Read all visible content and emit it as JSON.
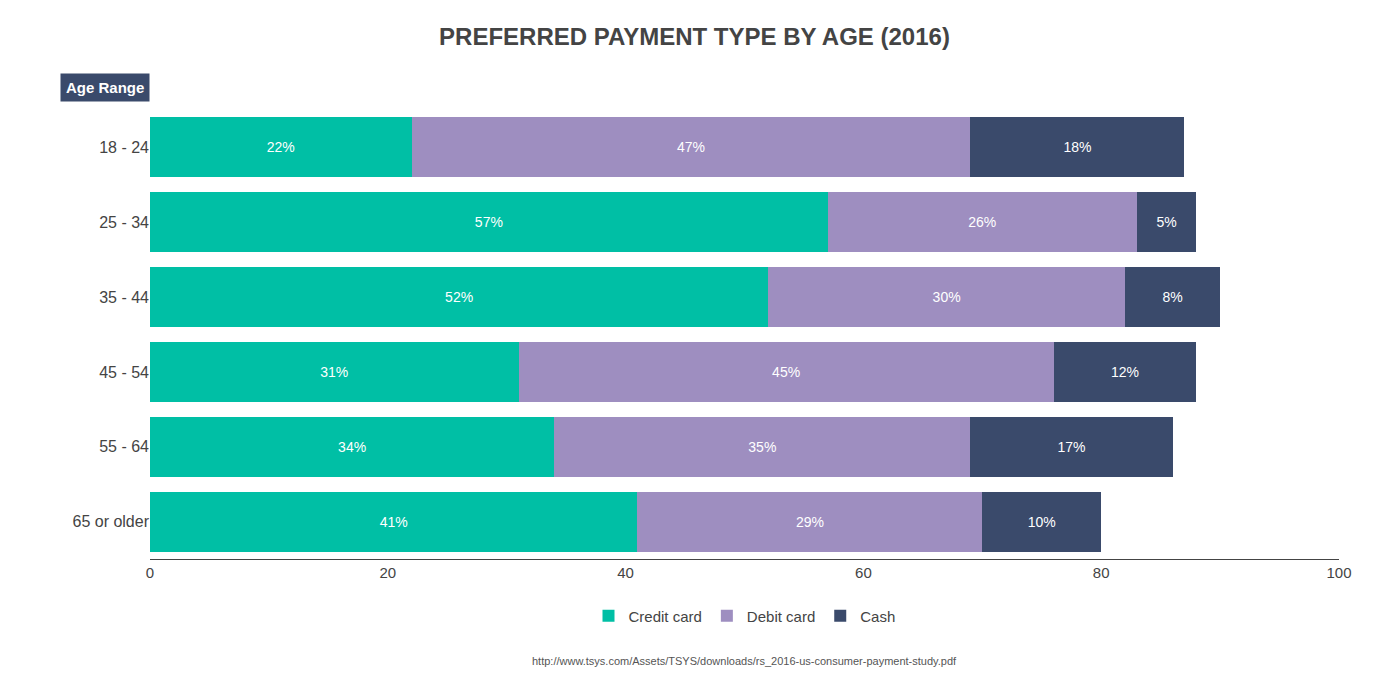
{
  "chart_data": {
    "type": "bar",
    "orientation": "horizontal",
    "stacked": true,
    "title": "PREFERRED PAYMENT TYPE BY AGE (2016)",
    "ylabel": "Age Range",
    "annotations": [
      "http://www.tsys.com/Assets/TSYS/downloads/rs_2016-us-consumer-payment-study.pdf"
    ],
    "categories": [
      "18 - 24",
      "25 - 34",
      "35 - 44",
      "45 - 54",
      "55 - 64",
      "65 or older"
    ],
    "series": [
      {
        "name": "Credit card",
        "color": "#00bfa5",
        "values": [
          22,
          57,
          52,
          31,
          34,
          41
        ],
        "value_labels": [
          "22%",
          "57%",
          "52%",
          "31%",
          "34%",
          "41%"
        ]
      },
      {
        "name": "Debit card",
        "color": "#9e8ec0",
        "values": [
          47,
          26,
          30,
          45,
          35,
          29
        ],
        "value_labels": [
          "47%",
          "26%",
          "30%",
          "45%",
          "35%",
          "29%"
        ]
      },
      {
        "name": "Cash",
        "color": "#3a4a6b",
        "values": [
          18,
          5,
          8,
          12,
          17,
          10
        ],
        "value_labels": [
          "18%",
          "5%",
          "8%",
          "12%",
          "17%",
          "10%"
        ]
      }
    ],
    "xlim": [
      0,
      100
    ],
    "xticks": [
      0,
      20,
      40,
      60,
      80,
      100
    ],
    "data_labels": true,
    "grid": false,
    "legend": "bottom"
  }
}
